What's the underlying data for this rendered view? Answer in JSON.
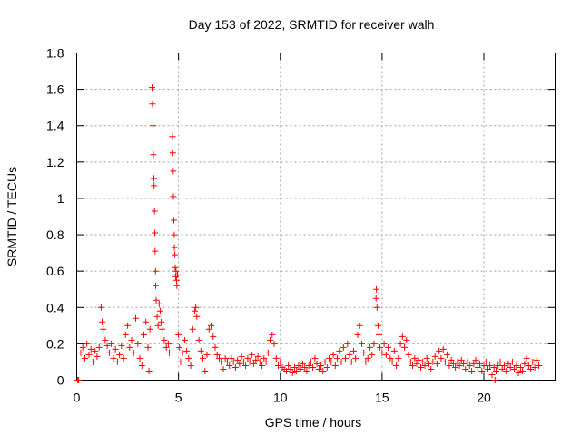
{
  "chart_data": {
    "type": "scatter",
    "title": "Day 153 of 2022, SRMTID for receiver walh",
    "xlabel": "GPS time / hours",
    "ylabel": "SRMTID / TECUs",
    "xlim": [
      0,
      23.5
    ],
    "ylim": [
      0,
      1.8
    ],
    "xticks": [
      0,
      5,
      10,
      15,
      20
    ],
    "yticks": [
      0,
      0.2,
      0.4,
      0.6,
      0.8,
      1,
      1.2,
      1.4,
      1.6,
      1.8
    ],
    "ytick_labels": [
      "0",
      "0.2",
      "0.4",
      "0.6",
      "0.8",
      "1",
      "1.2",
      "1.4",
      "1.6",
      "1.8"
    ],
    "grid": true,
    "marker": "plus",
    "color": "#ff0000",
    "series": [
      {
        "name": "SRMTID",
        "points": [
          [
            0.05,
            0.0
          ],
          [
            0.1,
            0.0
          ],
          [
            0.2,
            0.15
          ],
          [
            0.3,
            0.18
          ],
          [
            0.4,
            0.12
          ],
          [
            0.5,
            0.2
          ],
          [
            0.6,
            0.14
          ],
          [
            0.7,
            0.17
          ],
          [
            0.8,
            0.1
          ],
          [
            0.9,
            0.16
          ],
          [
            1.0,
            0.13
          ],
          [
            1.1,
            0.18
          ],
          [
            1.2,
            0.4
          ],
          [
            1.25,
            0.32
          ],
          [
            1.3,
            0.28
          ],
          [
            1.4,
            0.22
          ],
          [
            1.5,
            0.19
          ],
          [
            1.6,
            0.15
          ],
          [
            1.7,
            0.2
          ],
          [
            1.8,
            0.12
          ],
          [
            1.9,
            0.17
          ],
          [
            2.0,
            0.1
          ],
          [
            2.1,
            0.14
          ],
          [
            2.2,
            0.19
          ],
          [
            2.3,
            0.12
          ],
          [
            2.4,
            0.25
          ],
          [
            2.5,
            0.3
          ],
          [
            2.6,
            0.18
          ],
          [
            2.7,
            0.22
          ],
          [
            2.8,
            0.15
          ],
          [
            2.9,
            0.34
          ],
          [
            3.0,
            0.2
          ],
          [
            3.1,
            0.12
          ],
          [
            3.2,
            0.08
          ],
          [
            3.3,
            0.25
          ],
          [
            3.4,
            0.32
          ],
          [
            3.5,
            0.18
          ],
          [
            3.55,
            0.05
          ],
          [
            3.6,
            0.28
          ],
          [
            3.7,
            1.61
          ],
          [
            3.72,
            1.52
          ],
          [
            3.75,
            1.4
          ],
          [
            3.77,
            1.24
          ],
          [
            3.79,
            1.11
          ],
          [
            3.8,
            1.07
          ],
          [
            3.82,
            0.93
          ],
          [
            3.84,
            0.81
          ],
          [
            3.85,
            0.71
          ],
          [
            3.87,
            0.6
          ],
          [
            3.88,
            0.52
          ],
          [
            3.9,
            0.44
          ],
          [
            3.95,
            0.35
          ],
          [
            4.0,
            0.3
          ],
          [
            4.05,
            0.42
          ],
          [
            4.1,
            0.38
          ],
          [
            4.15,
            0.32
          ],
          [
            4.2,
            0.28
          ],
          [
            4.3,
            0.22
          ],
          [
            4.4,
            0.18
          ],
          [
            4.5,
            0.2
          ],
          [
            4.55,
            0.15
          ],
          [
            4.7,
            1.34
          ],
          [
            4.72,
            1.25
          ],
          [
            4.74,
            1.15
          ],
          [
            4.75,
            1.01
          ],
          [
            4.77,
            0.88
          ],
          [
            4.79,
            0.8
          ],
          [
            4.8,
            0.73
          ],
          [
            4.82,
            0.69
          ],
          [
            4.84,
            0.62
          ],
          [
            4.86,
            0.57
          ],
          [
            4.88,
            0.6
          ],
          [
            4.9,
            0.55
          ],
          [
            4.92,
            0.52
          ],
          [
            4.95,
            0.58
          ],
          [
            5.0,
            0.25
          ],
          [
            5.05,
            0.18
          ],
          [
            5.1,
            0.1
          ],
          [
            5.2,
            0.15
          ],
          [
            5.3,
            0.22
          ],
          [
            5.4,
            0.16
          ],
          [
            5.5,
            0.12
          ],
          [
            5.6,
            0.08
          ],
          [
            5.7,
            0.28
          ],
          [
            5.8,
            0.38
          ],
          [
            5.85,
            0.4
          ],
          [
            5.9,
            0.35
          ],
          [
            6.0,
            0.22
          ],
          [
            6.1,
            0.16
          ],
          [
            6.2,
            0.12
          ],
          [
            6.3,
            0.05
          ],
          [
            6.4,
            0.14
          ],
          [
            6.5,
            0.28
          ],
          [
            6.6,
            0.3
          ],
          [
            6.7,
            0.24
          ],
          [
            6.8,
            0.18
          ],
          [
            6.9,
            0.14
          ],
          [
            7.0,
            0.12
          ],
          [
            7.1,
            0.1
          ],
          [
            7.2,
            0.06
          ],
          [
            7.3,
            0.12
          ],
          [
            7.4,
            0.1
          ],
          [
            7.5,
            0.08
          ],
          [
            7.6,
            0.12
          ],
          [
            7.7,
            0.1
          ],
          [
            7.8,
            0.07
          ],
          [
            7.9,
            0.11
          ],
          [
            8.0,
            0.09
          ],
          [
            8.1,
            0.13
          ],
          [
            8.2,
            0.1
          ],
          [
            8.3,
            0.08
          ],
          [
            8.4,
            0.12
          ],
          [
            8.5,
            0.1
          ],
          [
            8.6,
            0.14
          ],
          [
            8.7,
            0.09
          ],
          [
            8.8,
            0.11
          ],
          [
            8.9,
            0.13
          ],
          [
            9.0,
            0.1
          ],
          [
            9.1,
            0.08
          ],
          [
            9.2,
            0.12
          ],
          [
            9.3,
            0.1
          ],
          [
            9.4,
            0.15
          ],
          [
            9.5,
            0.22
          ],
          [
            9.6,
            0.25
          ],
          [
            9.7,
            0.2
          ],
          [
            9.8,
            0.12
          ],
          [
            9.9,
            0.08
          ],
          [
            10.0,
            0.1
          ],
          [
            10.1,
            0.07
          ],
          [
            10.2,
            0.06
          ],
          [
            10.3,
            0.05
          ],
          [
            10.4,
            0.08
          ],
          [
            10.5,
            0.06
          ],
          [
            10.6,
            0.04
          ],
          [
            10.7,
            0.07
          ],
          [
            10.8,
            0.05
          ],
          [
            10.9,
            0.08
          ],
          [
            11.0,
            0.06
          ],
          [
            11.1,
            0.09
          ],
          [
            11.2,
            0.07
          ],
          [
            11.3,
            0.05
          ],
          [
            11.4,
            0.08
          ],
          [
            11.5,
            0.1
          ],
          [
            11.6,
            0.07
          ],
          [
            11.7,
            0.12
          ],
          [
            11.8,
            0.09
          ],
          [
            11.9,
            0.06
          ],
          [
            12.0,
            0.08
          ],
          [
            12.1,
            0.05
          ],
          [
            12.2,
            0.1
          ],
          [
            12.3,
            0.07
          ],
          [
            12.4,
            0.12
          ],
          [
            12.5,
            0.1
          ],
          [
            12.6,
            0.14
          ],
          [
            12.7,
            0.08
          ],
          [
            12.8,
            0.12
          ],
          [
            12.9,
            0.16
          ],
          [
            13.0,
            0.1
          ],
          [
            13.1,
            0.18
          ],
          [
            13.2,
            0.12
          ],
          [
            13.3,
            0.2
          ],
          [
            13.4,
            0.14
          ],
          [
            13.5,
            0.1
          ],
          [
            13.6,
            0.16
          ],
          [
            13.7,
            0.12
          ],
          [
            13.8,
            0.25
          ],
          [
            13.9,
            0.3
          ],
          [
            14.0,
            0.2
          ],
          [
            14.1,
            0.15
          ],
          [
            14.2,
            0.1
          ],
          [
            14.3,
            0.12
          ],
          [
            14.4,
            0.18
          ],
          [
            14.5,
            0.14
          ],
          [
            14.6,
            0.2
          ],
          [
            14.7,
            0.45
          ],
          [
            14.72,
            0.5
          ],
          [
            14.75,
            0.4
          ],
          [
            14.8,
            0.3
          ],
          [
            14.85,
            0.25
          ],
          [
            14.9,
            0.18
          ],
          [
            15.0,
            0.15
          ],
          [
            15.1,
            0.2
          ],
          [
            15.2,
            0.14
          ],
          [
            15.3,
            0.18
          ],
          [
            15.4,
            0.12
          ],
          [
            15.5,
            0.1
          ],
          [
            15.6,
            0.16
          ],
          [
            15.7,
            0.08
          ],
          [
            15.8,
            0.12
          ],
          [
            15.9,
            0.2
          ],
          [
            16.0,
            0.24
          ],
          [
            16.1,
            0.18
          ],
          [
            16.2,
            0.22
          ],
          [
            16.3,
            0.14
          ],
          [
            16.4,
            0.1
          ],
          [
            16.5,
            0.08
          ],
          [
            16.6,
            0.12
          ],
          [
            16.7,
            0.09
          ],
          [
            16.8,
            0.11
          ],
          [
            16.9,
            0.07
          ],
          [
            17.0,
            0.1
          ],
          [
            17.1,
            0.08
          ],
          [
            17.2,
            0.12
          ],
          [
            17.3,
            0.09
          ],
          [
            17.4,
            0.06
          ],
          [
            17.5,
            0.1
          ],
          [
            17.6,
            0.13
          ],
          [
            17.7,
            0.09
          ],
          [
            17.8,
            0.16
          ],
          [
            17.9,
            0.12
          ],
          [
            18.0,
            0.17
          ],
          [
            18.1,
            0.1
          ],
          [
            18.2,
            0.14
          ],
          [
            18.3,
            0.08
          ],
          [
            18.4,
            0.11
          ],
          [
            18.5,
            0.09
          ],
          [
            18.6,
            0.07
          ],
          [
            18.7,
            0.1
          ],
          [
            18.8,
            0.08
          ],
          [
            18.9,
            0.11
          ],
          [
            19.0,
            0.09
          ],
          [
            19.1,
            0.06
          ],
          [
            19.2,
            0.1
          ],
          [
            19.3,
            0.08
          ],
          [
            19.4,
            0.05
          ],
          [
            19.5,
            0.09
          ],
          [
            19.6,
            0.11
          ],
          [
            19.7,
            0.07
          ],
          [
            19.8,
            0.09
          ],
          [
            19.9,
            0.05
          ],
          [
            20.0,
            0.08
          ],
          [
            20.1,
            0.1
          ],
          [
            20.2,
            0.06
          ],
          [
            20.3,
            0.08
          ],
          [
            20.4,
            0.03
          ],
          [
            20.5,
            0.07
          ],
          [
            20.55,
            0.0
          ],
          [
            20.6,
            0.05
          ],
          [
            20.7,
            0.08
          ],
          [
            20.8,
            0.1
          ],
          [
            20.9,
            0.06
          ],
          [
            21.0,
            0.08
          ],
          [
            21.1,
            0.05
          ],
          [
            21.2,
            0.09
          ],
          [
            21.3,
            0.07
          ],
          [
            21.4,
            0.1
          ],
          [
            21.5,
            0.06
          ],
          [
            21.6,
            0.08
          ],
          [
            21.7,
            0.04
          ],
          [
            21.8,
            0.07
          ],
          [
            21.9,
            0.05
          ],
          [
            22.0,
            0.09
          ],
          [
            22.1,
            0.12
          ],
          [
            22.2,
            0.08
          ],
          [
            22.3,
            0.06
          ],
          [
            22.4,
            0.1
          ],
          [
            22.5,
            0.07
          ],
          [
            22.6,
            0.11
          ],
          [
            22.7,
            0.08
          ]
        ]
      }
    ]
  }
}
